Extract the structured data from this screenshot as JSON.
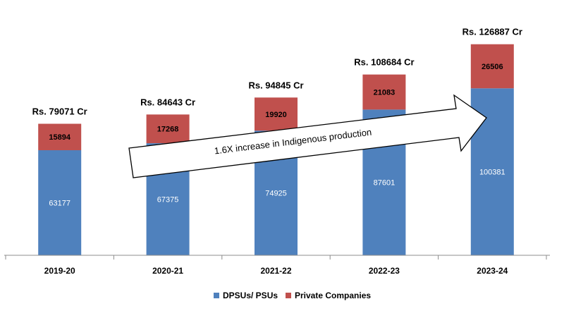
{
  "chart_data": {
    "type": "bar",
    "stacked": true,
    "categories": [
      "2019-20",
      "2020-21",
      "2021-22",
      "2022-23",
      "2023-24"
    ],
    "series": [
      {
        "name": "DPSUs/ PSUs",
        "values": [
          63177,
          67375,
          74925,
          87601,
          100381
        ],
        "color": "#4f81bd"
      },
      {
        "name": "Private Companies",
        "values": [
          15894,
          17268,
          19920,
          21083,
          26506
        ],
        "color": "#c0504d"
      }
    ],
    "totals": [
      "Rs. 79071 Cr",
      "Rs. 84643 Cr",
      "Rs. 94845 Cr",
      "Rs. 108684 Cr",
      "Rs.  126887 Cr"
    ],
    "ylim": [
      0,
      145000
    ],
    "grid": false,
    "legend_position": "bottom",
    "annotation": "1.6X increase in Indigenous production"
  }
}
